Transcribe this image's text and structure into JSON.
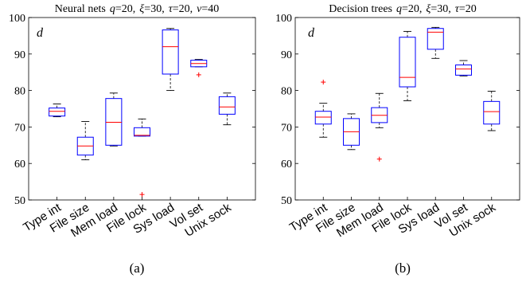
{
  "chart_data": [
    {
      "type": "boxplot",
      "title_prefix": "Neural nets",
      "title_params": [
        {
          "sym": "q",
          "val": "20"
        },
        {
          "sym": "ξ",
          "val": "30"
        },
        {
          "sym": "τ",
          "val": "20"
        },
        {
          "sym": "ν",
          "val": "40"
        }
      ],
      "panel_tag": "d",
      "sublabel": "(a)",
      "ylim": [
        50,
        100
      ],
      "yticks": [
        50,
        60,
        70,
        80,
        90,
        100
      ],
      "categories": [
        "Type int",
        "File size",
        "Mem load",
        "File lock",
        "Sys load",
        "Vol set",
        "Unix sock"
      ],
      "boxes": [
        {
          "whisker_low": 72.8,
          "q1": 73.0,
          "median": 74.3,
          "q3": 75.2,
          "whisker_high": 76.3,
          "outliers": []
        },
        {
          "whisker_low": 61.0,
          "q1": 62.3,
          "median": 64.8,
          "q3": 67.2,
          "whisker_high": 71.5,
          "outliers": []
        },
        {
          "whisker_low": 64.8,
          "q1": 65.0,
          "median": 71.3,
          "q3": 77.8,
          "whisker_high": 79.3,
          "outliers": []
        },
        {
          "whisker_low": 67.5,
          "q1": 67.5,
          "median": 67.7,
          "q3": 69.8,
          "whisker_high": 72.2,
          "outliers": [
            51.5
          ]
        },
        {
          "whisker_low": 80.0,
          "q1": 84.5,
          "median": 92.0,
          "q3": 96.6,
          "whisker_high": 97.0,
          "outliers": []
        },
        {
          "whisker_low": 86.5,
          "q1": 86.5,
          "median": 87.4,
          "q3": 88.3,
          "whisker_high": 88.5,
          "outliers": [
            84.3
          ]
        },
        {
          "whisker_low": 70.6,
          "q1": 73.5,
          "median": 75.5,
          "q3": 78.3,
          "whisker_high": 79.3,
          "outliers": []
        }
      ]
    },
    {
      "type": "boxplot",
      "title_prefix": "Decision trees",
      "title_params": [
        {
          "sym": "q",
          "val": "20"
        },
        {
          "sym": "ξ",
          "val": "30"
        },
        {
          "sym": "τ",
          "val": "20"
        }
      ],
      "panel_tag": "d",
      "sublabel": "(b)",
      "ylim": [
        50,
        100
      ],
      "yticks": [
        50,
        60,
        70,
        80,
        90,
        100
      ],
      "categories": [
        "Type int",
        "File size",
        "Mem load",
        "File lock",
        "Sys load",
        "Vol set",
        "Unix sock"
      ],
      "boxes": [
        {
          "whisker_low": 67.2,
          "q1": 70.8,
          "median": 72.7,
          "q3": 74.3,
          "whisker_high": 76.5,
          "outliers": [
            82.3
          ]
        },
        {
          "whisker_low": 63.8,
          "q1": 65.0,
          "median": 68.7,
          "q3": 72.3,
          "whisker_high": 73.6,
          "outliers": []
        },
        {
          "whisker_low": 69.8,
          "q1": 71.2,
          "median": 73.2,
          "q3": 75.3,
          "whisker_high": 79.2,
          "outliers": [
            61.2
          ]
        },
        {
          "whisker_low": 77.2,
          "q1": 81.0,
          "median": 83.6,
          "q3": 94.6,
          "whisker_high": 96.2,
          "outliers": []
        },
        {
          "whisker_low": 88.8,
          "q1": 91.3,
          "median": 96.0,
          "q3": 97.0,
          "whisker_high": 97.3,
          "outliers": []
        },
        {
          "whisker_low": 84.0,
          "q1": 84.2,
          "median": 85.9,
          "q3": 87.0,
          "whisker_high": 88.2,
          "outliers": []
        },
        {
          "whisker_low": 69.0,
          "q1": 70.8,
          "median": 74.2,
          "q3": 77.0,
          "whisker_high": 79.8,
          "outliers": []
        }
      ]
    }
  ],
  "colors": {
    "box": "#0000ff",
    "median": "#ff0000",
    "whisker": "#000000",
    "outlier": "#ff0000",
    "axis": "#000000"
  }
}
